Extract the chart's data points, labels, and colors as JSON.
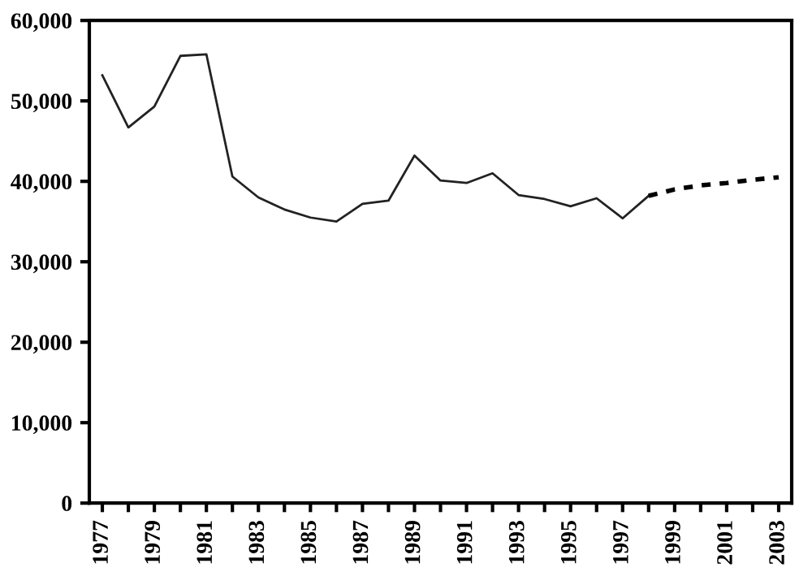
{
  "chart_data": {
    "type": "line",
    "categories": [
      "1977",
      null,
      "1979",
      null,
      "1981",
      null,
      "1983",
      null,
      "1985",
      null,
      "1987",
      null,
      "1989",
      null,
      "1991",
      null,
      "1993",
      null,
      "1995",
      null,
      "1997",
      null,
      "1999",
      null,
      "2001",
      null,
      "2003"
    ],
    "series": [
      {
        "color": "#222222",
        "line_style": "solid",
        "values": [
          53200,
          46700,
          49300,
          55600,
          55800,
          40600,
          38000,
          36500,
          35500,
          35000,
          37200,
          37600,
          43200,
          40100,
          39800,
          41000,
          38300,
          37800,
          36900,
          37900,
          35400,
          38200,
          null,
          null,
          null,
          null,
          null
        ]
      },
      {
        "color": "#000000",
        "line_style": "dashed",
        "values": [
          null,
          null,
          null,
          null,
          null,
          null,
          null,
          null,
          null,
          null,
          null,
          null,
          null,
          null,
          null,
          null,
          null,
          null,
          null,
          null,
          null,
          38200,
          39000,
          39500,
          39800,
          40200,
          40500
        ]
      }
    ],
    "ylim": [
      0,
      60000
    ],
    "yticks": [
      {
        "value": 0,
        "label": "0"
      },
      {
        "value": 10000,
        "label": "10,000"
      },
      {
        "value": 20000,
        "label": "20,000"
      },
      {
        "value": 30000,
        "label": "30,000"
      },
      {
        "value": 40000,
        "label": "40,000"
      },
      {
        "value": 50000,
        "label": "50,000"
      },
      {
        "value": 60000,
        "label": "60,000"
      }
    ],
    "grid": false,
    "legend": false,
    "marker": "none"
  }
}
